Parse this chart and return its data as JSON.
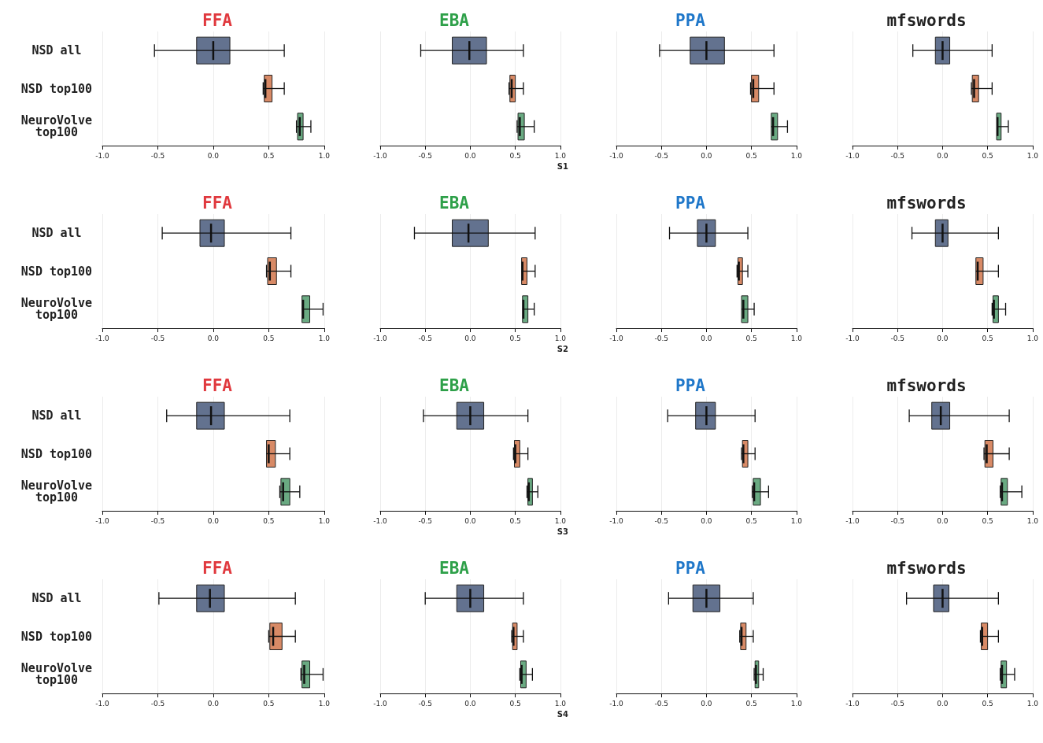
{
  "chart_data": [
    {
      "type": "box",
      "title": "FFA",
      "orientation": "horizontal",
      "categories": [
        "NSD all",
        "NSD top100",
        "NeuroVolve\ntop100"
      ],
      "colors": [
        "#63728f",
        "#d88a66",
        "#6aaa82"
      ],
      "xlim": [
        -1,
        1
      ],
      "xticks": [
        {
          "value": -1,
          "label": "-1.0"
        },
        {
          "value": -0.5,
          "label": "-0.5"
        },
        {
          "value": 0,
          "label": "0.0"
        },
        {
          "value": 0.5,
          "label": "0.5"
        },
        {
          "value": 1,
          "label": "1.0"
        }
      ],
      "grid": "x",
      "boxes": [
        {
          "low": -0.53,
          "q1": -0.15,
          "median": 0.0,
          "q3": 0.15,
          "high": 0.64
        },
        {
          "low": 0.45,
          "q1": 0.46,
          "median": 0.47,
          "q3": 0.53,
          "high": 0.64
        },
        {
          "low": 0.75,
          "q1": 0.76,
          "median": 0.78,
          "q3": 0.81,
          "high": 0.88
        }
      ]
    },
    {
      "type": "box",
      "title": "EBA",
      "xlabel": "S1",
      "orientation": "horizontal",
      "categories": [
        null,
        null,
        null
      ],
      "colors": [
        "#63728f",
        "#d88a66",
        "#6aaa82"
      ],
      "xlim": [
        -1,
        1
      ],
      "xticks": [
        {
          "value": -1,
          "label": "-1.0"
        },
        {
          "value": -0.5,
          "label": "-0.5"
        },
        {
          "value": 0,
          "label": "0.0"
        },
        {
          "value": 0.5,
          "label": "0.5"
        },
        {
          "value": 1,
          "label": "1.0"
        }
      ],
      "grid": "x",
      "boxes": [
        {
          "low": -0.55,
          "q1": -0.2,
          "median": -0.01,
          "q3": 0.18,
          "high": 0.59
        },
        {
          "low": 0.43,
          "q1": 0.44,
          "median": 0.46,
          "q3": 0.5,
          "high": 0.59
        },
        {
          "low": 0.52,
          "q1": 0.53,
          "median": 0.55,
          "q3": 0.6,
          "high": 0.71
        }
      ]
    },
    {
      "type": "box",
      "title": "PPA",
      "orientation": "horizontal",
      "categories": [
        null,
        null,
        null
      ],
      "colors": [
        "#63728f",
        "#d88a66",
        "#6aaa82"
      ],
      "xlim": [
        -1,
        1
      ],
      "xticks": [
        {
          "value": -1,
          "label": "-1.0"
        },
        {
          "value": -0.5,
          "label": "-0.5"
        },
        {
          "value": 0,
          "label": "0.0"
        },
        {
          "value": 0.5,
          "label": "0.5"
        },
        {
          "value": 1,
          "label": "1.0"
        }
      ],
      "grid": "x",
      "boxes": [
        {
          "low": -0.52,
          "q1": -0.18,
          "median": 0.0,
          "q3": 0.2,
          "high": 0.75
        },
        {
          "low": 0.49,
          "q1": 0.5,
          "median": 0.52,
          "q3": 0.58,
          "high": 0.75
        },
        {
          "low": 0.72,
          "q1": 0.72,
          "median": 0.74,
          "q3": 0.79,
          "high": 0.9
        }
      ]
    },
    {
      "type": "box",
      "title": "mfswords",
      "orientation": "horizontal",
      "categories": [
        null,
        null,
        null
      ],
      "colors": [
        "#63728f",
        "#d88a66",
        "#6aaa82"
      ],
      "xlim": [
        -1,
        1
      ],
      "xticks": [
        {
          "value": -1,
          "label": "-1.0"
        },
        {
          "value": -0.5,
          "label": "-0.5"
        },
        {
          "value": 0,
          "label": "0.0"
        },
        {
          "value": 0.5,
          "label": "0.5"
        },
        {
          "value": 1,
          "label": "1.0"
        }
      ],
      "grid": "x",
      "boxes": [
        {
          "low": -0.33,
          "q1": -0.08,
          "median": 0.0,
          "q3": 0.08,
          "high": 0.55
        },
        {
          "low": 0.32,
          "q1": 0.33,
          "median": 0.35,
          "q3": 0.4,
          "high": 0.55
        },
        {
          "low": 0.6,
          "q1": 0.6,
          "median": 0.61,
          "q3": 0.65,
          "high": 0.73
        }
      ]
    },
    {
      "type": "box",
      "title": "FFA",
      "orientation": "horizontal",
      "categories": [
        "NSD all",
        "NSD top100",
        "NeuroVolve\ntop100"
      ],
      "colors": [
        "#63728f",
        "#d88a66",
        "#6aaa82"
      ],
      "xlim": [
        -1,
        1
      ],
      "xticks": [
        {
          "value": -1,
          "label": "-1.0"
        },
        {
          "value": -0.5,
          "label": "-0.5"
        },
        {
          "value": 0,
          "label": "0.0"
        },
        {
          "value": 0.5,
          "label": "0.5"
        },
        {
          "value": 1,
          "label": "1.0"
        }
      ],
      "grid": "x",
      "boxes": [
        {
          "low": -0.46,
          "q1": -0.12,
          "median": -0.02,
          "q3": 0.1,
          "high": 0.7
        },
        {
          "low": 0.48,
          "q1": 0.49,
          "median": 0.51,
          "q3": 0.57,
          "high": 0.7
        },
        {
          "low": 0.8,
          "q1": 0.8,
          "median": 0.81,
          "q3": 0.87,
          "high": 0.99
        }
      ]
    },
    {
      "type": "box",
      "title": "EBA",
      "xlabel": "S2",
      "orientation": "horizontal",
      "categories": [
        null,
        null,
        null
      ],
      "colors": [
        "#63728f",
        "#d88a66",
        "#6aaa82"
      ],
      "xlim": [
        -1,
        1
      ],
      "xticks": [
        {
          "value": -1,
          "label": "-1.0"
        },
        {
          "value": -0.5,
          "label": "-0.5"
        },
        {
          "value": 0,
          "label": "0.0"
        },
        {
          "value": 0.5,
          "label": "0.5"
        },
        {
          "value": 1,
          "label": "1.0"
        }
      ],
      "grid": "x",
      "boxes": [
        {
          "low": -0.62,
          "q1": -0.2,
          "median": -0.02,
          "q3": 0.2,
          "high": 0.72
        },
        {
          "low": 0.57,
          "q1": 0.57,
          "median": 0.58,
          "q3": 0.63,
          "high": 0.72
        },
        {
          "low": 0.58,
          "q1": 0.58,
          "median": 0.59,
          "q3": 0.64,
          "high": 0.71
        }
      ]
    },
    {
      "type": "box",
      "title": "PPA",
      "orientation": "horizontal",
      "categories": [
        null,
        null,
        null
      ],
      "colors": [
        "#63728f",
        "#d88a66",
        "#6aaa82"
      ],
      "xlim": [
        -1,
        1
      ],
      "xticks": [
        {
          "value": -1,
          "label": "-1.0"
        },
        {
          "value": -0.5,
          "label": "-0.5"
        },
        {
          "value": 0,
          "label": "0.0"
        },
        {
          "value": 0.5,
          "label": "0.5"
        },
        {
          "value": 1,
          "label": "1.0"
        }
      ],
      "grid": "x",
      "boxes": [
        {
          "low": -0.41,
          "q1": -0.1,
          "median": 0.0,
          "q3": 0.1,
          "high": 0.46
        },
        {
          "low": 0.34,
          "q1": 0.35,
          "median": 0.36,
          "q3": 0.4,
          "high": 0.46
        },
        {
          "low": 0.39,
          "q1": 0.39,
          "median": 0.41,
          "q3": 0.46,
          "high": 0.53
        }
      ]
    },
    {
      "type": "box",
      "title": "mfswords",
      "orientation": "horizontal",
      "categories": [
        null,
        null,
        null
      ],
      "colors": [
        "#63728f",
        "#d88a66",
        "#6aaa82"
      ],
      "xlim": [
        -1,
        1
      ],
      "xticks": [
        {
          "value": -1,
          "label": "-1.0"
        },
        {
          "value": -0.5,
          "label": "-0.5"
        },
        {
          "value": 0,
          "label": "0.0"
        },
        {
          "value": 0.5,
          "label": "0.5"
        },
        {
          "value": 1,
          "label": "1.0"
        }
      ],
      "grid": "x",
      "boxes": [
        {
          "low": -0.34,
          "q1": -0.08,
          "median": 0.0,
          "q3": 0.06,
          "high": 0.62
        },
        {
          "low": 0.37,
          "q1": 0.37,
          "median": 0.39,
          "q3": 0.45,
          "high": 0.62
        },
        {
          "low": 0.55,
          "q1": 0.56,
          "median": 0.57,
          "q3": 0.62,
          "high": 0.7
        }
      ]
    },
    {
      "type": "box",
      "title": "FFA",
      "orientation": "horizontal",
      "categories": [
        "NSD all",
        "NSD top100",
        "NeuroVolve\ntop100"
      ],
      "colors": [
        "#63728f",
        "#d88a66",
        "#6aaa82"
      ],
      "xlim": [
        -1,
        1
      ],
      "xticks": [
        {
          "value": -1,
          "label": "-1.0"
        },
        {
          "value": -0.5,
          "label": "-0.5"
        },
        {
          "value": 0,
          "label": "0.0"
        },
        {
          "value": 0.5,
          "label": "0.5"
        },
        {
          "value": 1,
          "label": "1.0"
        }
      ],
      "grid": "x",
      "boxes": [
        {
          "low": -0.42,
          "q1": -0.15,
          "median": -0.02,
          "q3": 0.1,
          "high": 0.69
        },
        {
          "low": 0.48,
          "q1": 0.48,
          "median": 0.5,
          "q3": 0.56,
          "high": 0.69
        },
        {
          "low": 0.6,
          "q1": 0.61,
          "median": 0.63,
          "q3": 0.69,
          "high": 0.78
        }
      ]
    },
    {
      "type": "box",
      "title": "EBA",
      "xlabel": "S3",
      "orientation": "horizontal",
      "categories": [
        null,
        null,
        null
      ],
      "colors": [
        "#63728f",
        "#d88a66",
        "#6aaa82"
      ],
      "xlim": [
        -1,
        1
      ],
      "xticks": [
        {
          "value": -1,
          "label": "-1.0"
        },
        {
          "value": -0.5,
          "label": "-0.5"
        },
        {
          "value": 0,
          "label": "0.0"
        },
        {
          "value": 0.5,
          "label": "0.5"
        },
        {
          "value": 1,
          "label": "1.0"
        }
      ],
      "grid": "x",
      "boxes": [
        {
          "low": -0.52,
          "q1": -0.15,
          "median": 0.0,
          "q3": 0.15,
          "high": 0.64
        },
        {
          "low": 0.48,
          "q1": 0.49,
          "median": 0.5,
          "q3": 0.55,
          "high": 0.64
        },
        {
          "low": 0.63,
          "q1": 0.64,
          "median": 0.65,
          "q3": 0.69,
          "high": 0.75
        }
      ]
    },
    {
      "type": "box",
      "title": "PPA",
      "orientation": "horizontal",
      "categories": [
        null,
        null,
        null
      ],
      "colors": [
        "#63728f",
        "#d88a66",
        "#6aaa82"
      ],
      "xlim": [
        -1,
        1
      ],
      "xticks": [
        {
          "value": -1,
          "label": "-1.0"
        },
        {
          "value": -0.5,
          "label": "-0.5"
        },
        {
          "value": 0,
          "label": "0.0"
        },
        {
          "value": 0.5,
          "label": "0.5"
        },
        {
          "value": 1,
          "label": "1.0"
        }
      ],
      "grid": "x",
      "boxes": [
        {
          "low": -0.43,
          "q1": -0.12,
          "median": 0.0,
          "q3": 0.1,
          "high": 0.54
        },
        {
          "low": 0.39,
          "q1": 0.4,
          "median": 0.41,
          "q3": 0.46,
          "high": 0.54
        },
        {
          "low": 0.51,
          "q1": 0.52,
          "median": 0.53,
          "q3": 0.6,
          "high": 0.69
        }
      ]
    },
    {
      "type": "box",
      "title": "mfswords",
      "orientation": "horizontal",
      "categories": [
        null,
        null,
        null
      ],
      "colors": [
        "#63728f",
        "#d88a66",
        "#6aaa82"
      ],
      "xlim": [
        -1,
        1
      ],
      "xticks": [
        {
          "value": -1,
          "label": "-1.0"
        },
        {
          "value": -0.5,
          "label": "-0.5"
        },
        {
          "value": 0,
          "label": "0.0"
        },
        {
          "value": 0.5,
          "label": "0.5"
        },
        {
          "value": 1,
          "label": "1.0"
        }
      ],
      "grid": "x",
      "boxes": [
        {
          "low": -0.37,
          "q1": -0.12,
          "median": -0.02,
          "q3": 0.08,
          "high": 0.74
        },
        {
          "low": 0.46,
          "q1": 0.47,
          "median": 0.49,
          "q3": 0.56,
          "high": 0.74
        },
        {
          "low": 0.64,
          "q1": 0.65,
          "median": 0.66,
          "q3": 0.72,
          "high": 0.88
        }
      ]
    },
    {
      "type": "box",
      "title": "FFA",
      "orientation": "horizontal",
      "categories": [
        "NSD all",
        "NSD top100",
        "NeuroVolve\ntop100"
      ],
      "colors": [
        "#63728f",
        "#d88a66",
        "#6aaa82"
      ],
      "xlim": [
        -1,
        1
      ],
      "xticks": [
        {
          "value": -1,
          "label": "-1.0"
        },
        {
          "value": -0.5,
          "label": "-0.5"
        },
        {
          "value": 0,
          "label": "0.0"
        },
        {
          "value": 0.5,
          "label": "0.5"
        },
        {
          "value": 1,
          "label": "1.0"
        }
      ],
      "grid": "x",
      "boxes": [
        {
          "low": -0.49,
          "q1": -0.15,
          "median": -0.03,
          "q3": 0.1,
          "high": 0.74
        },
        {
          "low": 0.5,
          "q1": 0.51,
          "median": 0.54,
          "q3": 0.62,
          "high": 0.74
        },
        {
          "low": 0.79,
          "q1": 0.8,
          "median": 0.82,
          "q3": 0.87,
          "high": 0.99
        }
      ]
    },
    {
      "type": "box",
      "title": "EBA",
      "xlabel": "S4",
      "orientation": "horizontal",
      "categories": [
        null,
        null,
        null
      ],
      "colors": [
        "#63728f",
        "#d88a66",
        "#6aaa82"
      ],
      "xlim": [
        -1,
        1
      ],
      "xticks": [
        {
          "value": -1,
          "label": "-1.0"
        },
        {
          "value": -0.5,
          "label": "-0.5"
        },
        {
          "value": 0,
          "label": "0.0"
        },
        {
          "value": 0.5,
          "label": "0.5"
        },
        {
          "value": 1,
          "label": "1.0"
        }
      ],
      "grid": "x",
      "boxes": [
        {
          "low": -0.5,
          "q1": -0.15,
          "median": 0.0,
          "q3": 0.15,
          "high": 0.59
        },
        {
          "low": 0.46,
          "q1": 0.47,
          "median": 0.48,
          "q3": 0.52,
          "high": 0.59
        },
        {
          "low": 0.55,
          "q1": 0.56,
          "median": 0.57,
          "q3": 0.62,
          "high": 0.69
        }
      ]
    },
    {
      "type": "box",
      "title": "PPA",
      "orientation": "horizontal",
      "categories": [
        null,
        null,
        null
      ],
      "colors": [
        "#63728f",
        "#d88a66",
        "#6aaa82"
      ],
      "xlim": [
        -1,
        1
      ],
      "xticks": [
        {
          "value": -1,
          "label": "-1.0"
        },
        {
          "value": -0.5,
          "label": "-0.5"
        },
        {
          "value": 0,
          "label": "0.0"
        },
        {
          "value": 0.5,
          "label": "0.5"
        },
        {
          "value": 1,
          "label": "1.0"
        }
      ],
      "grid": "x",
      "boxes": [
        {
          "low": -0.42,
          "q1": -0.15,
          "median": 0.0,
          "q3": 0.15,
          "high": 0.52
        },
        {
          "low": 0.37,
          "q1": 0.38,
          "median": 0.39,
          "q3": 0.44,
          "high": 0.52
        },
        {
          "low": 0.53,
          "q1": 0.54,
          "median": 0.55,
          "q3": 0.58,
          "high": 0.63
        }
      ]
    },
    {
      "type": "box",
      "title": "mfswords",
      "orientation": "horizontal",
      "categories": [
        null,
        null,
        null
      ],
      "colors": [
        "#63728f",
        "#d88a66",
        "#6aaa82"
      ],
      "xlim": [
        -1,
        1
      ],
      "xticks": [
        {
          "value": -1,
          "label": "-1.0"
        },
        {
          "value": -0.5,
          "label": "-0.5"
        },
        {
          "value": 0,
          "label": "0.0"
        },
        {
          "value": 0.5,
          "label": "0.5"
        },
        {
          "value": 1,
          "label": "1.0"
        }
      ],
      "grid": "x",
      "boxes": [
        {
          "low": -0.4,
          "q1": -0.1,
          "median": 0.0,
          "q3": 0.07,
          "high": 0.62
        },
        {
          "low": 0.42,
          "q1": 0.43,
          "median": 0.44,
          "q3": 0.5,
          "high": 0.62
        },
        {
          "low": 0.64,
          "q1": 0.65,
          "median": 0.66,
          "q3": 0.71,
          "high": 0.8
        }
      ]
    }
  ]
}
